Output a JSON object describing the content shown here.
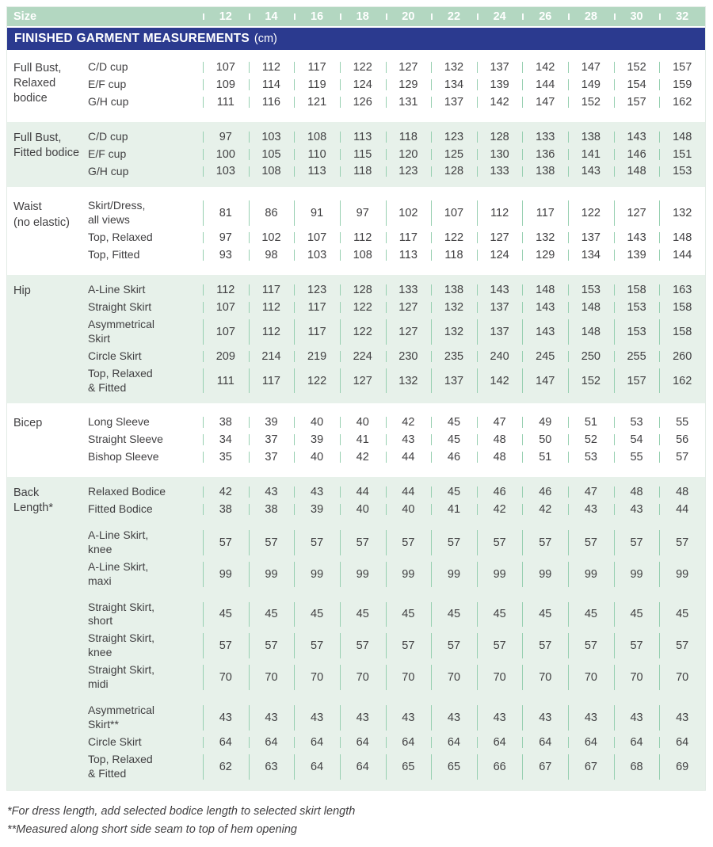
{
  "header": {
    "size_label": "Size",
    "sizes": [
      "12",
      "14",
      "16",
      "18",
      "20",
      "22",
      "24",
      "26",
      "28",
      "30",
      "32"
    ],
    "title": "FINISHED GARMENT MEASUREMENTS",
    "title_unit": "(cm)"
  },
  "colors": {
    "size_header_green": "#b3d7c1",
    "title_bar_navy": "#2b3a8f",
    "band_light_green": "#e7f1ea",
    "separator_green": "#96cfb0",
    "text_dark_gray": "#414042",
    "header_text_white": "#ffffff"
  },
  "groups": [
    {
      "category": "Full Bust,\nRelaxed\nbodice",
      "shaded": false,
      "rows": [
        {
          "label": "C/D cup",
          "values": [
            107,
            112,
            117,
            122,
            127,
            132,
            137,
            142,
            147,
            152,
            157
          ]
        },
        {
          "label": "E/F cup",
          "values": [
            109,
            114,
            119,
            124,
            129,
            134,
            139,
            144,
            149,
            154,
            159
          ]
        },
        {
          "label": "G/H cup",
          "values": [
            111,
            116,
            121,
            126,
            131,
            137,
            142,
            147,
            152,
            157,
            162
          ]
        }
      ]
    },
    {
      "category": "Full Bust,\nFitted bodice",
      "shaded": true,
      "rows": [
        {
          "label": "C/D cup",
          "values": [
            97,
            103,
            108,
            113,
            118,
            123,
            128,
            133,
            138,
            143,
            148
          ]
        },
        {
          "label": "E/F cup",
          "values": [
            100,
            105,
            110,
            115,
            120,
            125,
            130,
            136,
            141,
            146,
            151
          ]
        },
        {
          "label": "G/H cup",
          "values": [
            103,
            108,
            113,
            118,
            123,
            128,
            133,
            138,
            143,
            148,
            153
          ]
        }
      ]
    },
    {
      "category": "Waist\n(no elastic)",
      "shaded": false,
      "rows": [
        {
          "label": "Skirt/Dress,\nall views",
          "values": [
            81,
            86,
            91,
            97,
            102,
            107,
            112,
            117,
            122,
            127,
            132
          ]
        },
        {
          "label": "Top, Relaxed",
          "values": [
            97,
            102,
            107,
            112,
            117,
            122,
            127,
            132,
            137,
            143,
            148
          ]
        },
        {
          "label": "Top, Fitted",
          "values": [
            93,
            98,
            103,
            108,
            113,
            118,
            124,
            129,
            134,
            139,
            144
          ]
        }
      ]
    },
    {
      "category": "Hip",
      "shaded": true,
      "rows": [
        {
          "label": "A-Line Skirt",
          "values": [
            112,
            117,
            123,
            128,
            133,
            138,
            143,
            148,
            153,
            158,
            163
          ]
        },
        {
          "label": "Straight Skirt",
          "values": [
            107,
            112,
            117,
            122,
            127,
            132,
            137,
            143,
            148,
            153,
            158
          ]
        },
        {
          "label": "Asymmetrical\nSkirt",
          "values": [
            107,
            112,
            117,
            122,
            127,
            132,
            137,
            143,
            148,
            153,
            158
          ]
        },
        {
          "label": "Circle Skirt",
          "values": [
            209,
            214,
            219,
            224,
            230,
            235,
            240,
            245,
            250,
            255,
            260
          ]
        },
        {
          "label": "Top, Relaxed\n& Fitted",
          "values": [
            111,
            117,
            122,
            127,
            132,
            137,
            142,
            147,
            152,
            157,
            162
          ]
        }
      ]
    },
    {
      "category": "Bicep",
      "shaded": false,
      "rows": [
        {
          "label": "Long Sleeve",
          "values": [
            38,
            39,
            40,
            40,
            42,
            45,
            47,
            49,
            51,
            53,
            55
          ]
        },
        {
          "label": "Straight Sleeve",
          "values": [
            34,
            37,
            39,
            41,
            43,
            45,
            48,
            50,
            52,
            54,
            56
          ]
        },
        {
          "label": "Bishop Sleeve",
          "values": [
            35,
            37,
            40,
            42,
            44,
            46,
            48,
            51,
            53,
            55,
            57
          ]
        }
      ]
    },
    {
      "category": "Back\nLength*",
      "shaded": true,
      "rows": [
        {
          "label": "Relaxed Bodice",
          "values": [
            42,
            43,
            43,
            44,
            44,
            45,
            46,
            46,
            47,
            48,
            48
          ]
        },
        {
          "label": "Fitted Bodice",
          "values": [
            38,
            38,
            39,
            40,
            40,
            41,
            42,
            42,
            43,
            43,
            44
          ]
        },
        {
          "label": "A-Line Skirt,\nknee",
          "gap_before": true,
          "values": [
            57,
            57,
            57,
            57,
            57,
            57,
            57,
            57,
            57,
            57,
            57
          ]
        },
        {
          "label": "A-Line Skirt,\nmaxi",
          "values": [
            99,
            99,
            99,
            99,
            99,
            99,
            99,
            99,
            99,
            99,
            99
          ]
        },
        {
          "label": "Straight Skirt,\nshort",
          "gap_before": true,
          "values": [
            45,
            45,
            45,
            45,
            45,
            45,
            45,
            45,
            45,
            45,
            45
          ]
        },
        {
          "label": "Straight Skirt,\nknee",
          "values": [
            57,
            57,
            57,
            57,
            57,
            57,
            57,
            57,
            57,
            57,
            57
          ]
        },
        {
          "label": "Straight Skirt,\nmidi",
          "values": [
            70,
            70,
            70,
            70,
            70,
            70,
            70,
            70,
            70,
            70,
            70
          ]
        },
        {
          "label": "Asymmetrical\nSkirt**",
          "gap_before": true,
          "values": [
            43,
            43,
            43,
            43,
            43,
            43,
            43,
            43,
            43,
            43,
            43
          ]
        },
        {
          "label": "Circle Skirt",
          "values": [
            64,
            64,
            64,
            64,
            64,
            64,
            64,
            64,
            64,
            64,
            64
          ]
        },
        {
          "label": "Top, Relaxed\n& Fitted",
          "values": [
            62,
            63,
            64,
            64,
            65,
            65,
            66,
            67,
            67,
            68,
            69
          ]
        }
      ]
    }
  ],
  "footnotes": [
    "*For dress length, add selected bodice length to selected skirt length",
    "**Measured along short side seam to top of hem opening"
  ]
}
